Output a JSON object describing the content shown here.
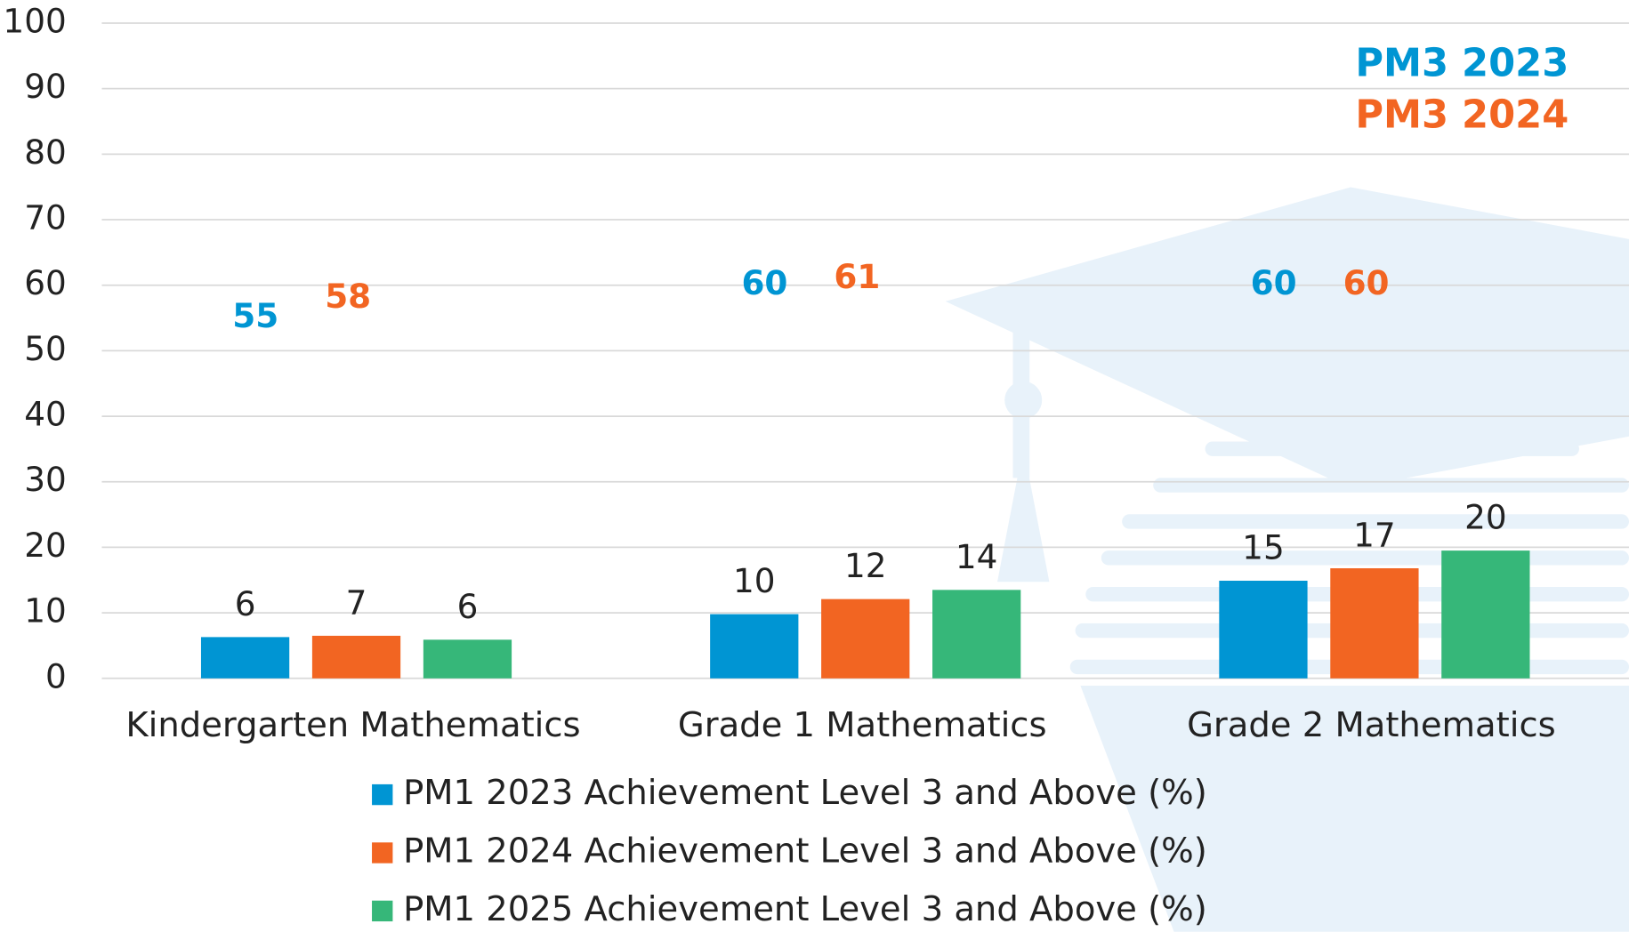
{
  "chart_data": {
    "type": "bar",
    "categories": [
      "Kindergarten Mathematics",
      "Grade 1 Mathematics",
      "Grade 2 Mathematics"
    ],
    "series": [
      {
        "name": "PM1 2023 Achievement Level 3 and Above (%)",
        "color": "#0095d3",
        "values": [
          6.3,
          9.8,
          14.9
        ],
        "value_labels": [
          "6",
          "10",
          "15"
        ]
      },
      {
        "name": "PM1 2024 Achievement Level 3 and Above (%)",
        "color": "#f26522",
        "values": [
          6.5,
          12.1,
          16.8
        ],
        "value_labels": [
          "7",
          "12",
          "17"
        ]
      },
      {
        "name": "PM1 2025 Achievement Level 3 and Above (%)",
        "color": "#36b779",
        "values": [
          5.9,
          13.5,
          19.5
        ],
        "value_labels": [
          "6",
          "14",
          "20"
        ]
      }
    ],
    "annotations": [
      {
        "name": "PM3 2023",
        "color": "#0095d3",
        "values": [
          55,
          60,
          60
        ]
      },
      {
        "name": "PM3 2024",
        "color": "#f26522",
        "values": [
          58,
          61,
          60
        ]
      }
    ],
    "ylim": [
      0,
      100
    ],
    "yticks": [
      0,
      10,
      20,
      30,
      40,
      50,
      60,
      70,
      80,
      90,
      100
    ],
    "grid": true,
    "legend": "bottom"
  }
}
